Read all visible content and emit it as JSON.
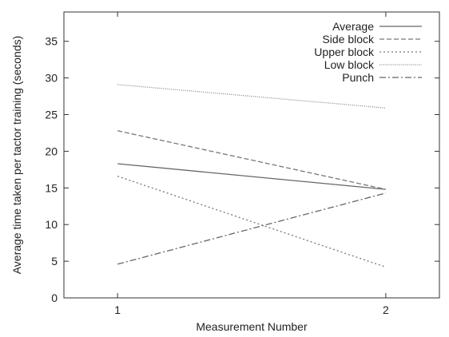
{
  "chart_data": {
    "type": "line",
    "title": "",
    "xlabel": "Measurement Number",
    "ylabel": "Average time taken per tactor training (seconds)",
    "x": [
      1,
      2
    ],
    "xticks": [
      "1",
      "2"
    ],
    "xlim": [
      0.8,
      2.2
    ],
    "ylim": [
      0,
      39
    ],
    "yticks": [
      "0",
      "5",
      "10",
      "15",
      "20",
      "25",
      "30",
      "35"
    ],
    "grid": false,
    "legend_position": "top-right",
    "series": [
      {
        "name": "Average",
        "values": [
          18.3,
          14.8
        ],
        "color": "#666666",
        "dash": "none"
      },
      {
        "name": "Side block",
        "values": [
          22.8,
          14.8
        ],
        "color": "#777777",
        "dash": "6,3"
      },
      {
        "name": "Upper block",
        "values": [
          16.6,
          4.2
        ],
        "color": "#777777",
        "dash": "2,3"
      },
      {
        "name": "Low block",
        "values": [
          29.1,
          25.9
        ],
        "color": "#888888",
        "dash": "1,1.5"
      },
      {
        "name": "Punch",
        "values": [
          4.6,
          14.3
        ],
        "color": "#666666",
        "dash": "8,3,2,3"
      }
    ]
  }
}
